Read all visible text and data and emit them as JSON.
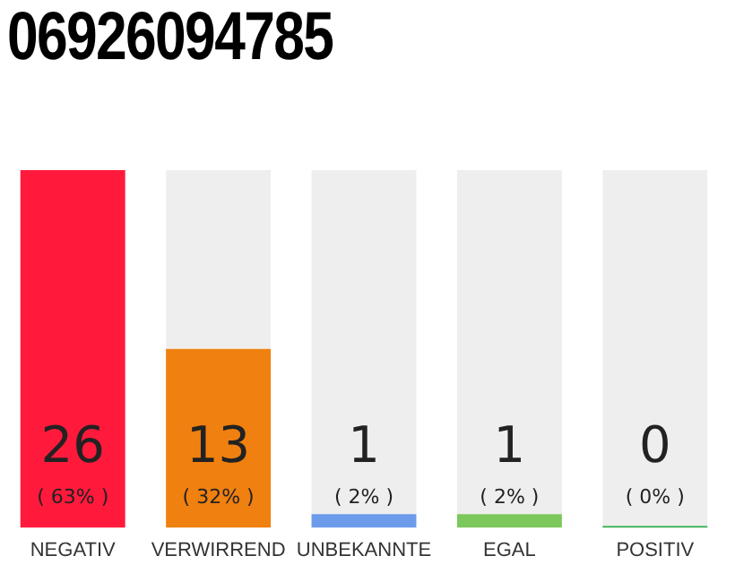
{
  "chart_data": {
    "type": "bar",
    "title": "06926094785",
    "stacked": true,
    "categories": [
      "NEGATIV",
      "VERWIRREND",
      "UNBEKANNTE",
      "EGAL",
      "POSITIV"
    ],
    "series": [
      {
        "values": [
          26,
          13,
          1,
          1,
          0
        ],
        "colors": [
          "#ff1a3c",
          "#f0800f",
          "#6c9bea",
          "#7cc85a",
          "#2aa84a"
        ],
        "value_labels": [
          "26",
          "13",
          "1",
          "1",
          "0"
        ]
      },
      {
        "values": [
          0,
          13,
          25,
          25,
          26
        ],
        "color": "#eeeeee"
      }
    ],
    "ylim": [
      0,
      26
    ],
    "tick_labels": "x",
    "grid": false,
    "legend": false,
    "annotations": [
      "( 63% )",
      "( 32% )",
      "( 2% )",
      "( 2% )",
      "( 0% )"
    ]
  }
}
